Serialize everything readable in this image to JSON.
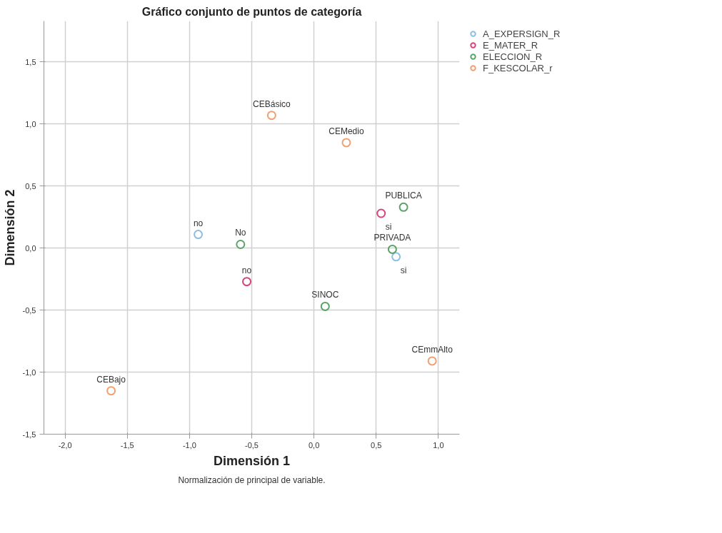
{
  "chart_data": {
    "type": "scatter",
    "title": "Gráfico conjunto de puntos de categoría",
    "xlabel": "Dimensión 1",
    "ylabel": "Dimensión 2",
    "xlim": [
      -2.17,
      1.17
    ],
    "ylim": [
      -1.5,
      1.83
    ],
    "xticks": [
      {
        "value": -2,
        "label": "-2,0"
      },
      {
        "value": -1.5,
        "label": "-1,5"
      },
      {
        "value": -1,
        "label": "-1,0"
      },
      {
        "value": -0.5,
        "label": "-0,5"
      },
      {
        "value": 0,
        "label": "0,0"
      },
      {
        "value": 0.5,
        "label": "0,5"
      },
      {
        "value": 1,
        "label": "1,0"
      }
    ],
    "yticks": [
      {
        "value": -1.5,
        "label": "-1,5"
      },
      {
        "value": -1,
        "label": "-1,0"
      },
      {
        "value": -0.5,
        "label": "-0,5"
      },
      {
        "value": 0,
        "label": "0,0"
      },
      {
        "value": 0.5,
        "label": "0,5"
      },
      {
        "value": 1,
        "label": "1,0"
      },
      {
        "value": 1.5,
        "label": "1,5"
      }
    ],
    "grid": true,
    "legend": "top right",
    "marker": "circle",
    "series": [
      {
        "name": "A_EXPERSIGN_R",
        "color": "#8fbfe0",
        "x": [
          -0.93,
          0.66
        ],
        "values": [
          0.11,
          -0.07
        ]
      },
      {
        "name": "E_MATER_R",
        "color": "#d6437a",
        "x": [
          0.54,
          -0.54
        ],
        "values": [
          0.28,
          -0.27
        ]
      },
      {
        "name": "ELECCION_R",
        "color": "#5aa469",
        "x": [
          0.72,
          0.63,
          -0.59,
          0.09
        ],
        "values": [
          0.33,
          -0.01,
          0.03,
          -0.47
        ]
      },
      {
        "name": "F_KESCOLAR_r",
        "color": "#f0a070",
        "x": [
          -0.34,
          0.26,
          0.95,
          -1.63
        ],
        "values": [
          1.07,
          0.85,
          -0.91,
          -1.15
        ]
      }
    ],
    "annotations": [
      {
        "text": "no",
        "x": -0.93,
        "y": 0.11
      },
      {
        "text": "si",
        "x": 0.66,
        "y": -0.07
      },
      {
        "text": "si",
        "x": 0.54,
        "y": 0.28
      },
      {
        "text": "no",
        "x": -0.54,
        "y": -0.27
      },
      {
        "text": "PUBLICA",
        "x": 0.72,
        "y": 0.33
      },
      {
        "text": "PRIVADA",
        "x": 0.63,
        "y": -0.01
      },
      {
        "text": "No",
        "x": -0.59,
        "y": 0.03
      },
      {
        "text": "SINOC",
        "x": 0.09,
        "y": -0.47
      },
      {
        "text": "CEBásico",
        "x": -0.34,
        "y": 1.07
      },
      {
        "text": "CEMedio",
        "x": 0.26,
        "y": 0.85
      },
      {
        "text": "CEmmAlto",
        "x": 0.95,
        "y": -0.91
      },
      {
        "text": "CEBajo",
        "x": -1.63,
        "y": -1.15
      },
      "Normalización de principal de variable."
    ]
  }
}
